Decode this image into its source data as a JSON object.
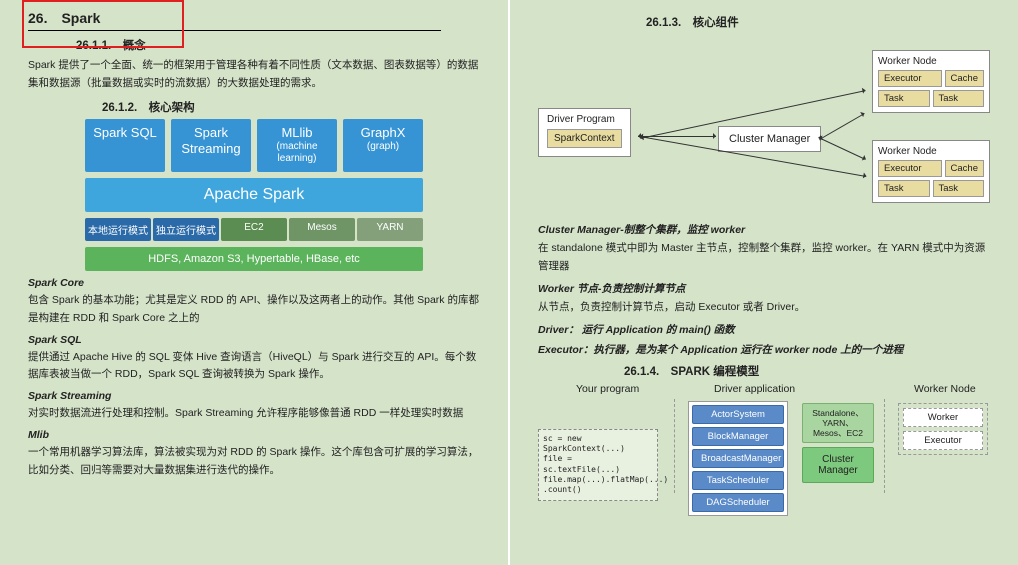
{
  "left": {
    "title": "26.　Spark",
    "h_26_1_1": "26.1.1.　概念",
    "intro": "Spark 提供了一个全面、统一的框架用于管理各种有着不同性质（文本数据、图表数据等）的数据集和数据源（批量数据或实时的流数据）的大数据处理的需求。",
    "h_26_1_2": "26.1.2.　核心架构",
    "d_sparksql": "Spark SQL",
    "d_streaming": "Spark Streaming",
    "d_mllib": "MLlib",
    "d_mllib_sub": "(machine learning)",
    "d_graphx": "GraphX",
    "d_graphx_sub": "(graph)",
    "d_apache": "Apache Spark",
    "d_tag1": "本地运行模式",
    "d_tag2": "独立运行模式",
    "d_tag3": "EC2",
    "d_tag4": "Mesos",
    "d_tag5": "YARN",
    "d_bottom": "HDFS,  Amazon S3, Hypertable, HBase, etc",
    "h_sparkcore": "Spark Core",
    "p_sparkcore": "包含 Spark 的基本功能；尤其是定义 RDD 的 API、操作以及这两者上的动作。其他 Spark 的库都是构建在 RDD 和 Spark Core 之上的",
    "h_sql": "Spark SQL",
    "p_sql": "提供通过 Apache Hive 的 SQL 变体 Hive 查询语言（HiveQL）与 Spark 进行交互的 API。每个数据库表被当做一个 RDD，Spark SQL 查询被转换为 Spark 操作。",
    "h_stream": "Spark Streaming",
    "p_stream": "对实时数据流进行处理和控制。Spark Streaming 允许程序能够像普通 RDD 一样处理实时数据",
    "h_mlib": "Mlib",
    "p_mlib": "一个常用机器学习算法库，算法被实现为对 RDD 的 Spark 操作。这个库包含可扩展的学习算法，比如分类、回归等需要对大量数据集进行迭代的操作。"
  },
  "right": {
    "h_26_1_3": "26.1.3.　核心组件",
    "drvprog": "Driver Program",
    "sparkctx": "SparkContext",
    "clmgr": "Cluster Manager",
    "wnode": "Worker Node",
    "executor": "Executor",
    "cache": "Cache",
    "task": "Task",
    "b1": "Cluster Manager-制整个集群，监控 worker",
    "p1": "在 standalone 模式中即为 Master 主节点，控制整个集群，监控 worker。在 YARN 模式中为资源管理器",
    "b2": "Worker 节点-负责控制计算节点",
    "p2": "从节点，负责控制计算节点，启动 Executor 或者 Driver。",
    "b3": "Driver： 运行 Application 的 main() 函数",
    "b4": "Executor：执行器，是为某个 Application 运行在 worker node 上的一个进程",
    "h_26_1_4": "26.1.4.　SPARK 编程模型",
    "pm_your": "Your program",
    "pm_drv": "Driver application",
    "pm_wn": "Worker Node",
    "pm_actor": "ActorSystem",
    "pm_block": "BlockManager",
    "pm_broad": "BroadcastManager",
    "pm_task": "TaskScheduler",
    "pm_dag": "DAGScheduler",
    "pm_stand": "Standalone、YARN、Mesos、EC2",
    "pm_cm": "Cluster Manager",
    "pm_worker": "Worker",
    "pm_exec": "Executor",
    "pm_code": "sc = new SparkContext(...)\nfile = sc.textFile(...)\nfile.map(...).flatMap(...)\n.count()"
  },
  "colors": {
    "tag_nav1": "#2b6aa8",
    "tag_nav2": "#2b6aa8",
    "tag_ec2": "#5b8c52",
    "tag_mesos": "#6f9566",
    "tag_yarn": "#83a07a"
  }
}
